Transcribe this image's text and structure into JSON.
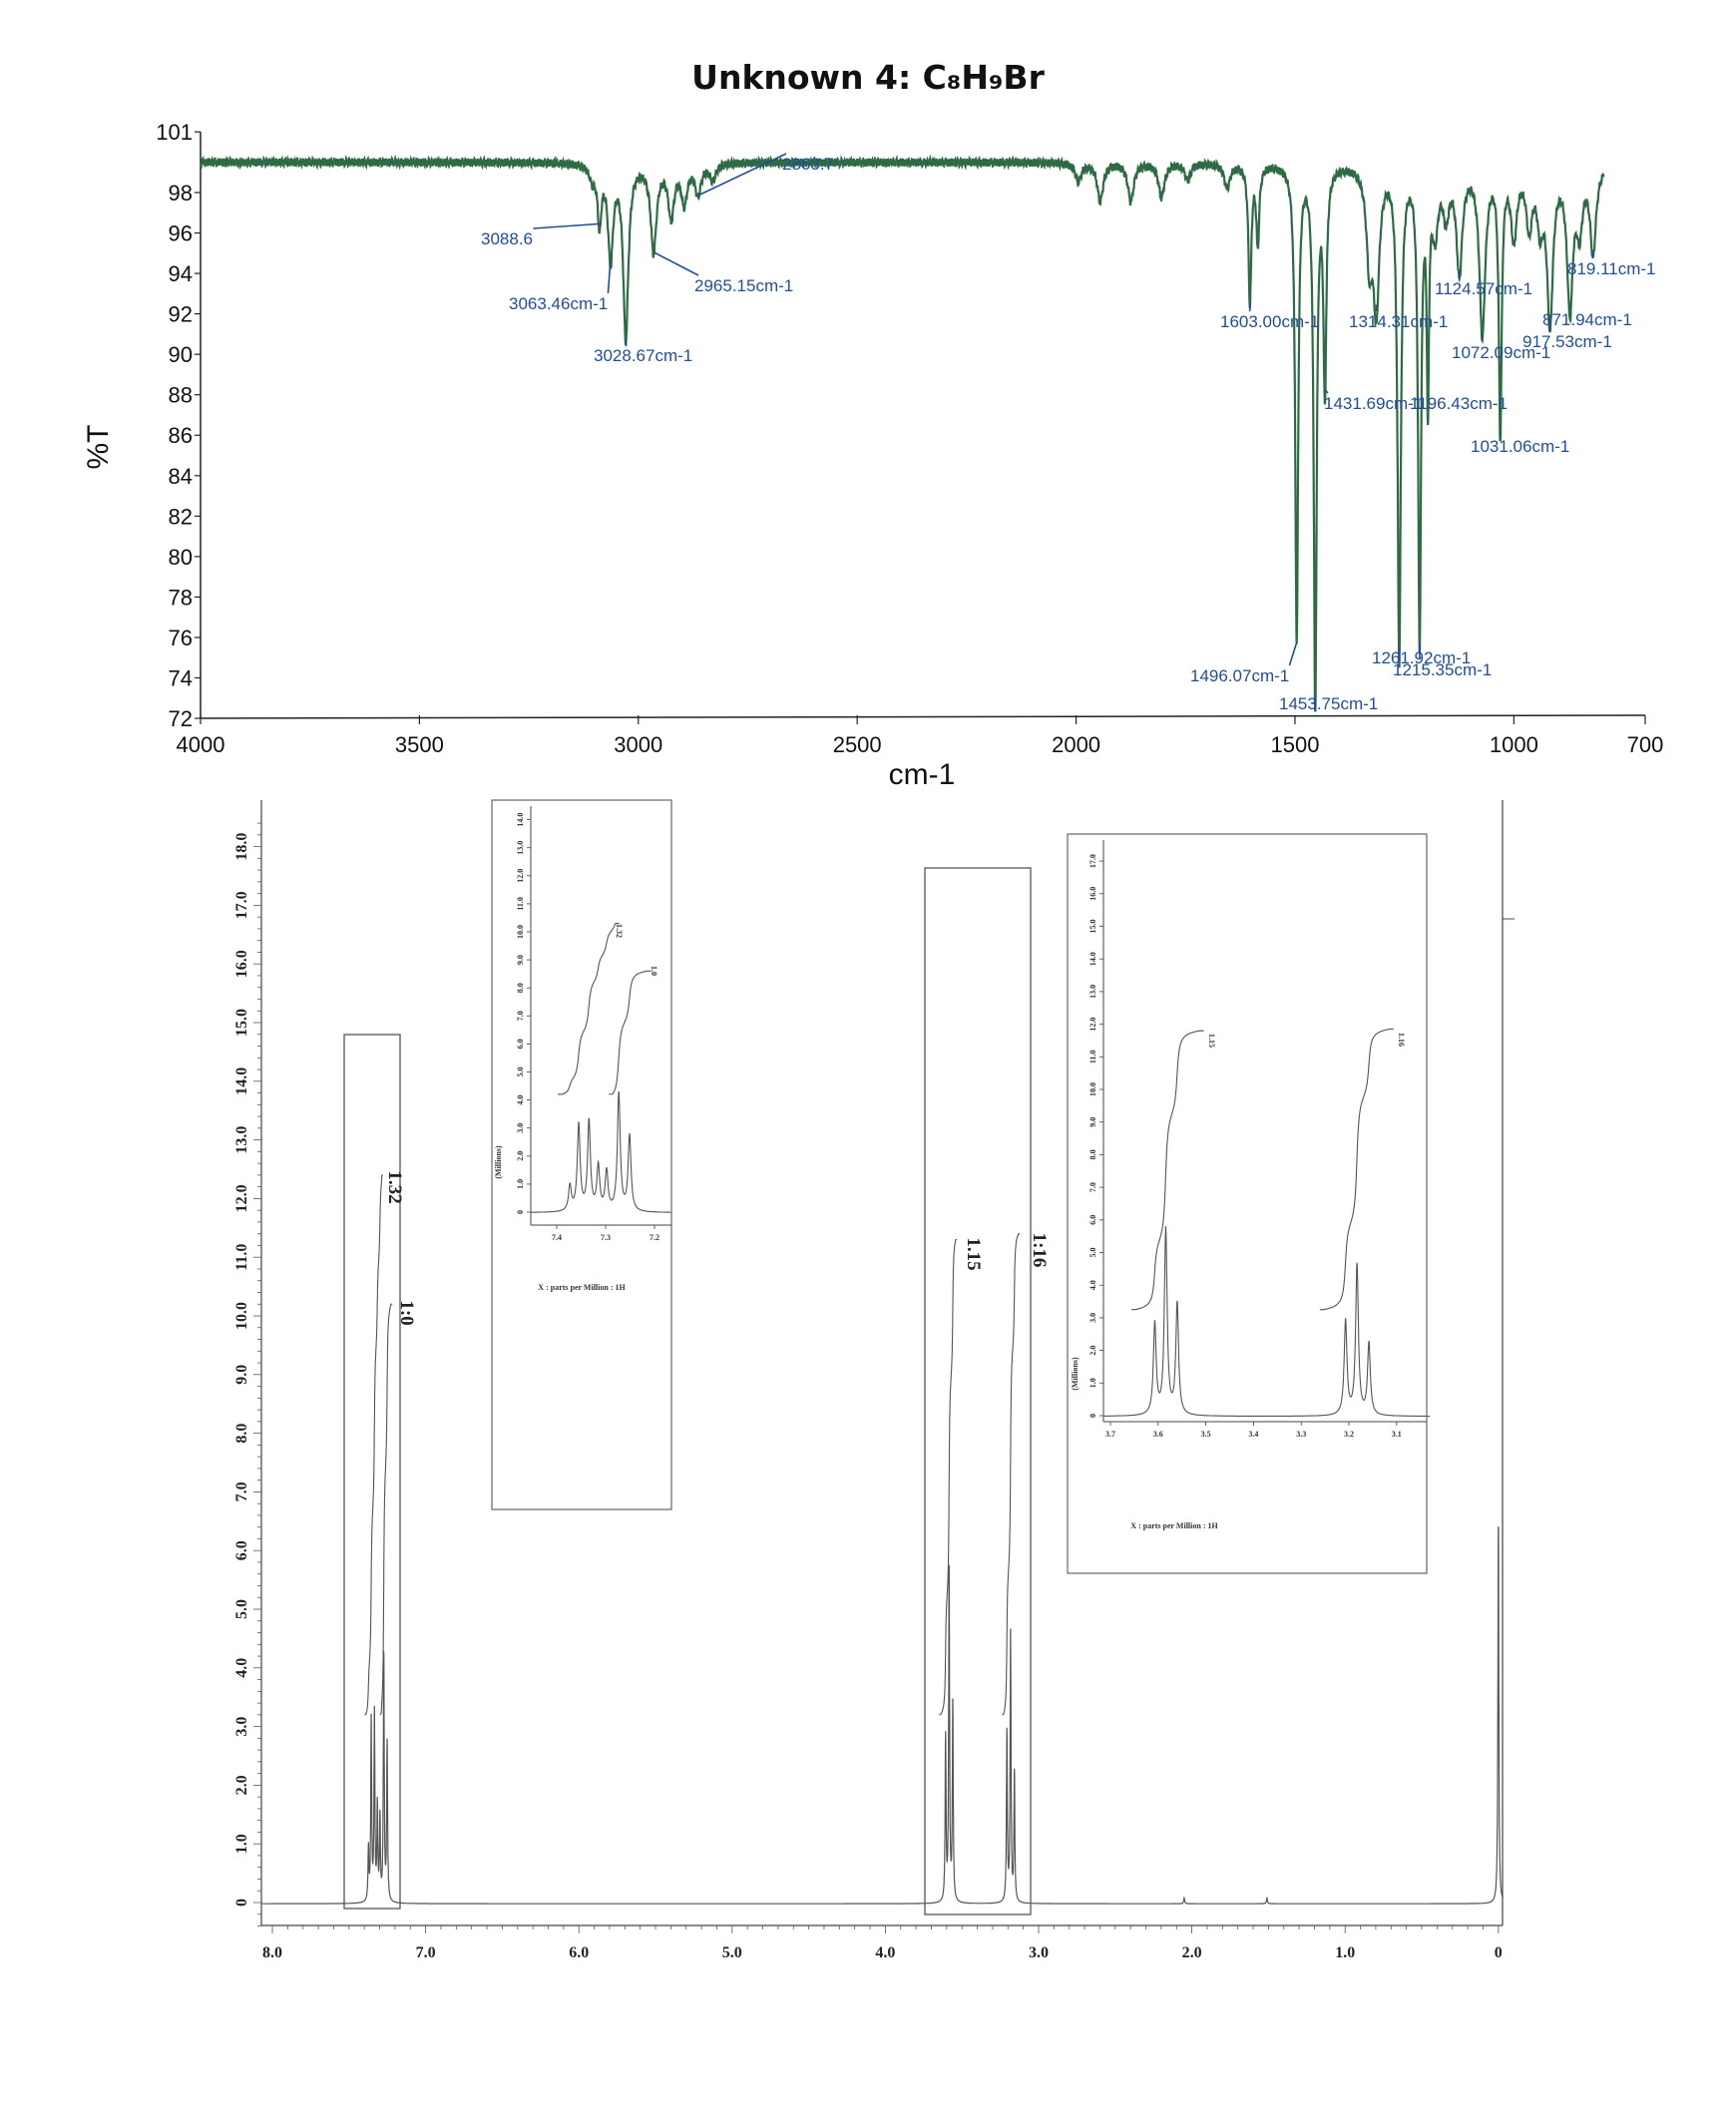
{
  "title": "Unknown 4: C₈H₉Br",
  "chart_data": [
    {
      "type": "line",
      "xlabel": "cm-1",
      "ylabel": "%T",
      "xlim": [
        4000,
        700
      ],
      "ylim": [
        72,
        101
      ],
      "xticks": [
        4000,
        3500,
        3000,
        2500,
        2000,
        1500,
        1000,
        700
      ],
      "yticks": [
        101,
        98,
        96,
        94,
        92,
        90,
        88,
        86,
        84,
        82,
        80,
        78,
        76,
        74,
        72
      ],
      "grid": false,
      "baseline_T": 99.5,
      "line_color": "#2e6b45",
      "label_color": "#1f4e9a",
      "bands": [
        {
          "wavenumber": 3088.6,
          "T": 96.6,
          "label": "3088.6"
        },
        {
          "wavenumber": 3063.46,
          "T": 94.8,
          "label": "3063.46cm-1"
        },
        {
          "wavenumber": 3028.67,
          "T": 90.9,
          "label": "3028.67cm-1"
        },
        {
          "wavenumber": 2965.15,
          "T": 95.2,
          "label": "2965.15cm-1"
        },
        {
          "wavenumber": 2863.7,
          "T": 98.0,
          "label": "2863.7"
        },
        {
          "wavenumber": 1603.0,
          "T": 92.7,
          "label": "1603.00cm-1"
        },
        {
          "wavenumber": 1496.07,
          "T": 75.9,
          "label": "1496.07cm-1"
        },
        {
          "wavenumber": 1453.75,
          "T": 72.6,
          "label": "1453.75cm-1"
        },
        {
          "wavenumber": 1431.69,
          "T": 88.4,
          "label": "1431.69cm-1"
        },
        {
          "wavenumber": 1314.31,
          "T": 92.6,
          "label": "1314.31cm-1"
        },
        {
          "wavenumber": 1261.92,
          "T": 75.0,
          "label": "1261.92cm-1"
        },
        {
          "wavenumber": 1215.35,
          "T": 75.8,
          "label": "1215.35cm-1"
        },
        {
          "wavenumber": 1196.43,
          "T": 88.2,
          "label": "1196.43cm-1"
        },
        {
          "wavenumber": 1124.57,
          "T": 94.3,
          "label": "1124.57cm-1"
        },
        {
          "wavenumber": 1072.09,
          "T": 91.2,
          "label": "1072.09cm-1"
        },
        {
          "wavenumber": 1031.06,
          "T": 86.4,
          "label": "1031.06cm-1"
        },
        {
          "wavenumber": 917.53,
          "T": 91.8,
          "label": "917.53cm-1"
        },
        {
          "wavenumber": 871.94,
          "T": 92.5,
          "label": "871.94cm-1"
        },
        {
          "wavenumber": 819.11,
          "T": 95.2,
          "label": "819.11cm-1"
        },
        {
          "wavenumber": 3105,
          "T": 98.8,
          "label": ""
        },
        {
          "wavenumber": 2925,
          "T": 96.9,
          "label": ""
        },
        {
          "wavenumber": 2895,
          "T": 97.6,
          "label": ""
        },
        {
          "wavenumber": 2830,
          "T": 98.7,
          "label": ""
        },
        {
          "wavenumber": 1995,
          "T": 98.6,
          "label": ""
        },
        {
          "wavenumber": 1945,
          "T": 97.6,
          "label": ""
        },
        {
          "wavenumber": 1875,
          "T": 97.6,
          "label": ""
        },
        {
          "wavenumber": 1805,
          "T": 97.8,
          "label": ""
        },
        {
          "wavenumber": 1745,
          "T": 98.7,
          "label": ""
        },
        {
          "wavenumber": 1655,
          "T": 98.3,
          "label": ""
        },
        {
          "wavenumber": 1585,
          "T": 95.6,
          "label": ""
        },
        {
          "wavenumber": 1330,
          "T": 95.0,
          "label": ""
        },
        {
          "wavenumber": 1180,
          "T": 96.4,
          "label": ""
        },
        {
          "wavenumber": 1155,
          "T": 97.2,
          "label": ""
        },
        {
          "wavenumber": 1000,
          "T": 96.0,
          "label": ""
        },
        {
          "wavenumber": 965,
          "T": 96.6,
          "label": ""
        },
        {
          "wavenumber": 940,
          "T": 96.8,
          "label": ""
        },
        {
          "wavenumber": 850,
          "T": 96.6,
          "label": ""
        }
      ]
    },
    {
      "type": "line",
      "xlim": [
        8.0,
        0
      ],
      "ylim": [
        0,
        18
      ],
      "xticks": [
        "8.0",
        "7.0",
        "6.0",
        "5.0",
        "4.0",
        "3.0",
        "2.0",
        "1.0",
        "0"
      ],
      "yticks": [
        "0",
        "1.0",
        "2.0",
        "3.0",
        "4.0",
        "5.0",
        "6.0",
        "7.0",
        "8.0",
        "9.0",
        "10.0",
        "11.0",
        "12.0",
        "13.0",
        "14.0",
        "15.0",
        "16.0",
        "17.0",
        "18.0"
      ],
      "line_color": "#555555",
      "peaks": [
        {
          "ppm": 7.373,
          "height": 0.9
        },
        {
          "ppm": 7.355,
          "height": 3.1
        },
        {
          "ppm": 7.334,
          "height": 3.2
        },
        {
          "ppm": 7.315,
          "height": 1.6
        },
        {
          "ppm": 7.298,
          "height": 1.4
        },
        {
          "ppm": 7.273,
          "height": 4.2
        },
        {
          "ppm": 7.251,
          "height": 2.7
        },
        {
          "ppm": 3.607,
          "height": 2.8
        },
        {
          "ppm": 3.584,
          "height": 5.7
        },
        {
          "ppm": 3.56,
          "height": 3.4
        },
        {
          "ppm": 3.207,
          "height": 2.9
        },
        {
          "ppm": 3.183,
          "height": 4.6
        },
        {
          "ppm": 3.158,
          "height": 2.2
        },
        {
          "ppm": 2.05,
          "height": 0.1
        },
        {
          "ppm": 1.51,
          "height": 0.1
        },
        {
          "ppm": 0.0,
          "height": 6.5
        }
      ],
      "integrals": [
        {
          "label": "1.32",
          "from": 7.39,
          "to": 7.285,
          "start": 3.2,
          "end": 12.4
        },
        {
          "label": "1:0",
          "from": 7.29,
          "to": 7.225,
          "start": 3.2,
          "end": 10.2
        },
        {
          "label": "1.15",
          "from": 3.64,
          "to": 3.54,
          "start": 3.2,
          "end": 11.3
        },
        {
          "label": "1:16",
          "from": 3.23,
          "to": 3.13,
          "start": 3.2,
          "end": 11.4
        }
      ],
      "insets": [
        {
          "xlim": [
            7.453,
            7.167
          ],
          "ylim": [
            0,
            14
          ],
          "xticks": [
            "7.4",
            "7.3",
            "7.2"
          ],
          "yticks": [
            "0",
            "1.0",
            "2.0",
            "3.0",
            "4.0",
            "5.0",
            "6.0",
            "7.0",
            "8.0",
            "9.0",
            "10.0",
            "11.0",
            "12.0",
            "13.0",
            "14.0"
          ],
          "ylabel": "(Millions)",
          "caption": "X : parts per Million : 1H",
          "integrals": [
            {
              "label": "1.32",
              "from": 7.39,
              "to": 7.28,
              "start": 4.2,
              "end": 10.3
            },
            {
              "label": "1.0",
              "from": 7.285,
              "to": 7.215,
              "start": 4.2,
              "end": 8.6
            }
          ]
        },
        {
          "xlim": [
            3.715,
            3.03
          ],
          "ylim": [
            0,
            17
          ],
          "xticks": [
            "3.7",
            "3.6",
            "3.5",
            "3.4",
            "3.3",
            "3.2",
            "3.1"
          ],
          "yticks": [
            "0",
            "1.0",
            "2.0",
            "3.0",
            "4.0",
            "5.0",
            "6.0",
            "7.0",
            "8.0",
            "9.0",
            "10.0",
            "11.0",
            "12.0",
            "13.0",
            "14.0",
            "15.0",
            "16.0",
            "17.0"
          ],
          "ylabel": "(Millions)",
          "caption": "X : parts per Million : 1H",
          "integrals": [
            {
              "label": "1.15",
              "from": 3.648,
              "to": 3.512,
              "start": 3.25,
              "end": 11.8
            },
            {
              "label": "1.16",
              "from": 3.253,
              "to": 3.114,
              "start": 3.25,
              "end": 11.85
            }
          ]
        }
      ]
    }
  ]
}
